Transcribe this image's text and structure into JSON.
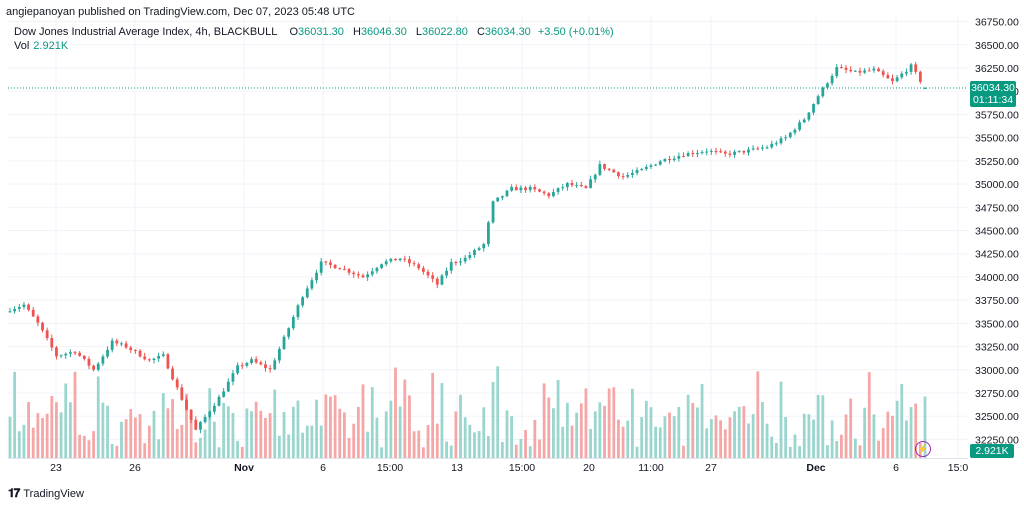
{
  "header": {
    "publisher_text": "angiepanoyan published on TradingView.com, Dec 07, 2023 05:48 UTC"
  },
  "legend": {
    "symbol": "Dow Jones Industrial Average Index, 4h, BLACKBULL",
    "o_label": "O",
    "o_value": "36031.30",
    "h_label": "H",
    "h_value": "36046.30",
    "l_label": "L",
    "l_value": "36022.80",
    "c_label": "C",
    "c_value": "36034.30",
    "change": "+3.50 (+0.01%)"
  },
  "volume_legend": {
    "label": "Vol",
    "value": "2.921K"
  },
  "price_tag": {
    "price": "36034.30",
    "countdown": "01:11:34"
  },
  "volume_tag": "2.921K",
  "brand": {
    "name": "TradingView",
    "logo_icon": "tradingview-logo-icon"
  },
  "colors": {
    "up": "#26a69a",
    "down": "#ef5350",
    "up_volume": "#9ad5ce",
    "down_volume": "#f4a7a6",
    "accent": "#089981",
    "grid": "#f0f3fa"
  },
  "chart_data": {
    "type": "candlestick",
    "y_ticks": [
      "36750.00",
      "36500.00",
      "36250.00",
      "36000.00",
      "35750.00",
      "35500.00",
      "35250.00",
      "35000.00",
      "34750.00",
      "34500.00",
      "34250.00",
      "34000.00",
      "33750.00",
      "33500.00",
      "33250.00",
      "33000.00",
      "32750.00",
      "32500.00",
      "32250.00"
    ],
    "ylim": [
      32050,
      36810
    ],
    "x_ticks": [
      {
        "label": "23",
        "bold": false
      },
      {
        "label": "26",
        "bold": false
      },
      {
        "label": "Nov",
        "bold": true
      },
      {
        "label": "6",
        "bold": false
      },
      {
        "label": "15:00",
        "bold": false
      },
      {
        "label": "13",
        "bold": false
      },
      {
        "label": "15:00",
        "bold": false
      },
      {
        "label": "20",
        "bold": false
      },
      {
        "label": "11:00",
        "bold": false
      },
      {
        "label": "27",
        "bold": false
      },
      {
        "label": "Dec",
        "bold": true
      },
      {
        "label": "6",
        "bold": false
      },
      {
        "label": "15:0",
        "bold": false
      }
    ],
    "last_price": 36034.3,
    "anchors": [
      [
        0,
        33650
      ],
      [
        3,
        33700
      ],
      [
        6,
        33500
      ],
      [
        10,
        33150
      ],
      [
        14,
        33200
      ],
      [
        18,
        33000
      ],
      [
        22,
        33300
      ],
      [
        25,
        33250
      ],
      [
        30,
        33100
      ],
      [
        33,
        33150
      ],
      [
        36,
        32800
      ],
      [
        40,
        32350
      ],
      [
        45,
        32700
      ],
      [
        49,
        33030
      ],
      [
        52,
        33100
      ],
      [
        56,
        33000
      ],
      [
        60,
        33450
      ],
      [
        63,
        33800
      ],
      [
        67,
        34150
      ],
      [
        71,
        34100
      ],
      [
        76,
        34000
      ],
      [
        80,
        34150
      ],
      [
        84,
        34200
      ],
      [
        88,
        34100
      ],
      [
        92,
        33920
      ],
      [
        95,
        34150
      ],
      [
        98,
        34200
      ],
      [
        102,
        34350
      ],
      [
        104,
        34800
      ],
      [
        108,
        34950
      ],
      [
        112,
        34950
      ],
      [
        116,
        34880
      ],
      [
        120,
        35000
      ],
      [
        124,
        34950
      ],
      [
        127,
        35200
      ],
      [
        132,
        35080
      ],
      [
        136,
        35150
      ],
      [
        140,
        35250
      ],
      [
        145,
        35320
      ],
      [
        150,
        35360
      ],
      [
        154,
        35320
      ],
      [
        159,
        35360
      ],
      [
        163,
        35400
      ],
      [
        167,
        35500
      ],
      [
        171,
        35700
      ],
      [
        174,
        35950
      ],
      [
        178,
        36250
      ],
      [
        182,
        36200
      ],
      [
        186,
        36230
      ],
      [
        190,
        36100
      ],
      [
        194,
        36270
      ],
      [
        197,
        36034.3
      ]
    ],
    "volume_max": 3000
  }
}
